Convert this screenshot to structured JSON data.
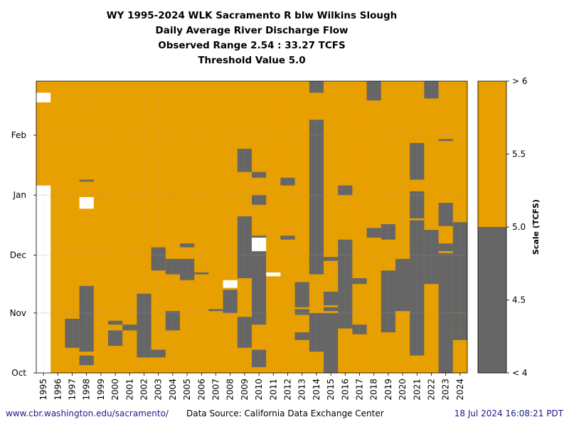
{
  "title_lines": [
    "WY 1995-2024 WLK Sacramento R blw Wilkins Slough",
    "Daily Average River Discharge Flow",
    "Observed Range 2.54 : 33.27 TCFS",
    "Threshold Value 5.0"
  ],
  "footer": {
    "url": "www.cbr.washington.edu/sacramento/",
    "source": "Data Source: California Data Exchange Center",
    "timestamp": "18 Jul 2024 16:08:21 PDT"
  },
  "colors": {
    "above": "#E8A000",
    "below": "#666666",
    "missing": "#FFFFFF",
    "url": "#1a1a8c"
  },
  "chart_data": {
    "type": "heatmap",
    "title": "WY 1995-2024 WLK Sacramento R blw Wilkins Slough",
    "subtitle": "Daily Average River Discharge Flow",
    "threshold": 5.0,
    "units": "TCFS",
    "years": [
      "1995",
      "1996",
      "1997",
      "1998",
      "1999",
      "2000",
      "2001",
      "2002",
      "2003",
      "2004",
      "2005",
      "2006",
      "2007",
      "2008",
      "2009",
      "2010",
      "2011",
      "2012",
      "2013",
      "2014",
      "2015",
      "2016",
      "2017",
      "2018",
      "2019",
      "2020",
      "2021",
      "2022",
      "2023",
      "2024"
    ],
    "y_axis": {
      "start_label": "Oct",
      "day_range": [
        0,
        151
      ],
      "ticks": [
        {
          "label": "Oct",
          "day": 0
        },
        {
          "label": "Nov",
          "day": 31
        },
        {
          "label": "Dec",
          "day": 61
        },
        {
          "label": "Jan",
          "day": 92
        },
        {
          "label": "Feb",
          "day": 123
        }
      ]
    },
    "colorbar": {
      "label": "Scale (TCFS)",
      "ticks": [
        "< 4",
        "4.5",
        "5.0",
        "5.5",
        "> 6"
      ],
      "range": [
        4,
        6
      ]
    },
    "below_threshold_days": [
      {
        "year": "1997",
        "start": 13,
        "end": 28
      },
      {
        "year": "1998",
        "start": 4,
        "end": 9
      },
      {
        "year": "1998",
        "start": 11,
        "end": 45
      },
      {
        "year": "1998",
        "start": 99,
        "end": 100
      },
      {
        "year": "2000",
        "start": 14,
        "end": 22
      },
      {
        "year": "2000",
        "start": 25,
        "end": 27
      },
      {
        "year": "2001",
        "start": 22,
        "end": 25
      },
      {
        "year": "2002",
        "start": 8,
        "end": 32
      },
      {
        "year": "2002",
        "start": 32,
        "end": 41
      },
      {
        "year": "2003",
        "start": 8,
        "end": 12
      },
      {
        "year": "2003",
        "start": 53,
        "end": 65
      },
      {
        "year": "2004",
        "start": 22,
        "end": 32
      },
      {
        "year": "2004",
        "start": 51,
        "end": 59
      },
      {
        "year": "2005",
        "start": 48,
        "end": 59
      },
      {
        "year": "2005",
        "start": 65,
        "end": 67
      },
      {
        "year": "2006",
        "start": 51,
        "end": 52
      },
      {
        "year": "2007",
        "start": 32,
        "end": 33
      },
      {
        "year": "2008",
        "start": 31,
        "end": 43
      },
      {
        "year": "2009",
        "start": 13,
        "end": 28
      },
      {
        "year": "2009",
        "start": 28,
        "end": 29
      },
      {
        "year": "2009",
        "start": 49,
        "end": 81
      },
      {
        "year": "2009",
        "start": 104,
        "end": 116
      },
      {
        "year": "2010",
        "start": 3,
        "end": 12
      },
      {
        "year": "2010",
        "start": 25,
        "end": 71
      },
      {
        "year": "2010",
        "start": 87,
        "end": 92
      },
      {
        "year": "2010",
        "start": 101,
        "end": 104
      },
      {
        "year": "2012",
        "start": 69,
        "end": 71
      },
      {
        "year": "2012",
        "start": 97,
        "end": 101
      },
      {
        "year": "2013",
        "start": 17,
        "end": 21
      },
      {
        "year": "2013",
        "start": 30,
        "end": 33
      },
      {
        "year": "2013",
        "start": 34,
        "end": 47
      },
      {
        "year": "2014",
        "start": 11,
        "end": 31
      },
      {
        "year": "2014",
        "start": 51,
        "end": 62
      },
      {
        "year": "2014",
        "start": 56,
        "end": 131
      },
      {
        "year": "2014",
        "start": 145,
        "end": 151
      },
      {
        "year": "2015",
        "start": 0,
        "end": 31
      },
      {
        "year": "2015",
        "start": 32,
        "end": 34
      },
      {
        "year": "2015",
        "start": 35,
        "end": 42
      },
      {
        "year": "2015",
        "start": 58,
        "end": 60
      },
      {
        "year": "2016",
        "start": 23,
        "end": 69
      },
      {
        "year": "2016",
        "start": 92,
        "end": 97
      },
      {
        "year": "2017",
        "start": 20,
        "end": 25
      },
      {
        "year": "2017",
        "start": 46,
        "end": 49
      },
      {
        "year": "2018",
        "start": 70,
        "end": 75
      },
      {
        "year": "2018",
        "start": 141,
        "end": 151
      },
      {
        "year": "2019",
        "start": 21,
        "end": 53
      },
      {
        "year": "2019",
        "start": 69,
        "end": 77
      },
      {
        "year": "2020",
        "start": 32,
        "end": 59
      },
      {
        "year": "2021",
        "start": 9,
        "end": 79
      },
      {
        "year": "2021",
        "start": 80,
        "end": 94
      },
      {
        "year": "2021",
        "start": 100,
        "end": 119
      },
      {
        "year": "2022",
        "start": 46,
        "end": 74
      },
      {
        "year": "2022",
        "start": 142,
        "end": 151
      },
      {
        "year": "2023",
        "start": 0,
        "end": 62
      },
      {
        "year": "2023",
        "start": 63,
        "end": 67
      },
      {
        "year": "2023",
        "start": 76,
        "end": 88
      },
      {
        "year": "2023",
        "start": 120,
        "end": 121
      },
      {
        "year": "2024",
        "start": 20,
        "end": 31
      },
      {
        "year": "2024",
        "start": 17,
        "end": 20
      },
      {
        "year": "2024",
        "start": 31,
        "end": 78
      }
    ],
    "missing_days": [
      {
        "year": "1995",
        "start": 0,
        "end": 97
      },
      {
        "year": "1995",
        "start": 140,
        "end": 145
      },
      {
        "year": "1998",
        "start": 85,
        "end": 91
      },
      {
        "year": "2008",
        "start": 44,
        "end": 48
      },
      {
        "year": "2010",
        "start": 63,
        "end": 70
      },
      {
        "year": "2011",
        "start": 50,
        "end": 52
      }
    ]
  }
}
